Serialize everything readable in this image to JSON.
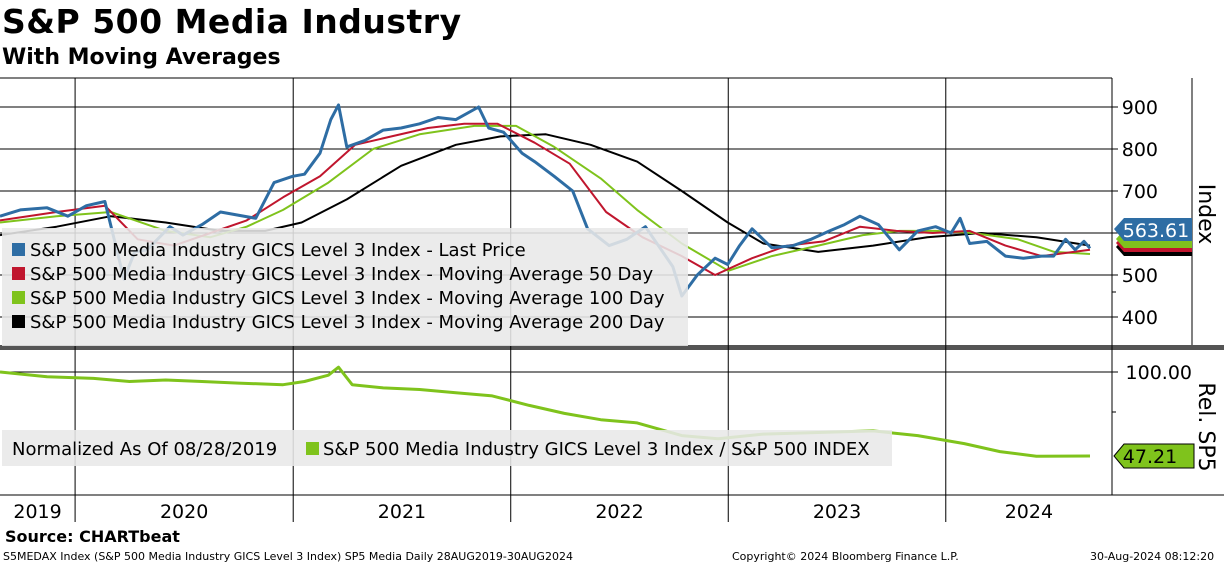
{
  "header": {
    "title": "S&P 500 Media Industry",
    "subtitle": "With Moving Averages"
  },
  "colors": {
    "last_price": "#2e6da4",
    "ma50": "#c0162e",
    "ma100": "#7fc31c",
    "ma200": "#000000",
    "relative": "#7fc31c"
  },
  "chart_data": [
    {
      "type": "line",
      "panel": "upper",
      "y_axis_label": "Index",
      "y_ticks": [
        "900",
        "800",
        "700",
        "600",
        "500",
        "400"
      ],
      "ylim": [
        350,
        950
      ],
      "x_ticks": [
        "2019",
        "2020",
        "2021",
        "2022",
        "2023",
        "2024"
      ],
      "xlim": [
        "2019-08-28",
        "2024-08-30"
      ],
      "last_value_label": "563.61",
      "legend": [
        "S&P 500 Media Industry GICS Level 3 Index - Last Price",
        "S&P 500 Media Industry GICS Level 3 Index - Moving Average 50 Day",
        "S&P 500 Media Industry GICS Level 3 Index - Moving Average 100 Day",
        "S&P 500 Media Industry GICS Level 3 Index - Moving Average 200 Day"
      ],
      "series": [
        {
          "name": "S&P 500 Media Industry GICS Level 3 Index - Last Price",
          "points": [
            [
              "2019-08-28",
              640
            ],
            [
              "2019-10-01",
              655
            ],
            [
              "2019-11-15",
              660
            ],
            [
              "2019-12-20",
              640
            ],
            [
              "2020-01-20",
              665
            ],
            [
              "2020-02-20",
              675
            ],
            [
              "2020-03-23",
              490
            ],
            [
              "2020-04-10",
              555
            ],
            [
              "2020-05-01",
              560
            ],
            [
              "2020-06-08",
              615
            ],
            [
              "2020-06-30",
              595
            ],
            [
              "2020-08-01",
              620
            ],
            [
              "2020-09-01",
              650
            ],
            [
              "2020-10-30",
              635
            ],
            [
              "2020-11-30",
              720
            ],
            [
              "2020-12-31",
              735
            ],
            [
              "2021-01-20",
              740
            ],
            [
              "2021-02-15",
              790
            ],
            [
              "2021-03-05",
              870
            ],
            [
              "2021-03-18",
              905
            ],
            [
              "2021-04-01",
              805
            ],
            [
              "2021-05-01",
              820
            ],
            [
              "2021-06-01",
              845
            ],
            [
              "2021-07-01",
              850
            ],
            [
              "2021-08-01",
              860
            ],
            [
              "2021-09-01",
              875
            ],
            [
              "2021-10-01",
              870
            ],
            [
              "2021-11-08",
              900
            ],
            [
              "2021-11-25",
              850
            ],
            [
              "2021-12-20",
              840
            ],
            [
              "2022-01-20",
              790
            ],
            [
              "2022-02-10",
              770
            ],
            [
              "2022-03-15",
              735
            ],
            [
              "2022-04-15",
              700
            ],
            [
              "2022-05-10",
              610
            ],
            [
              "2022-06-15",
              570
            ],
            [
              "2022-07-15",
              585
            ],
            [
              "2022-08-15",
              615
            ],
            [
              "2022-09-30",
              520
            ],
            [
              "2022-10-15",
              450
            ],
            [
              "2022-11-10",
              500
            ],
            [
              "2022-12-10",
              540
            ],
            [
              "2022-12-31",
              525
            ],
            [
              "2023-01-20",
              570
            ],
            [
              "2023-02-10",
              610
            ],
            [
              "2023-03-15",
              565
            ],
            [
              "2023-04-20",
              570
            ],
            [
              "2023-05-20",
              585
            ],
            [
              "2023-06-20",
              605
            ],
            [
              "2023-07-15",
              620
            ],
            [
              "2023-08-10",
              640
            ],
            [
              "2023-09-10",
              620
            ],
            [
              "2023-10-15",
              560
            ],
            [
              "2023-11-15",
              605
            ],
            [
              "2023-12-15",
              615
            ],
            [
              "2024-01-10",
              600
            ],
            [
              "2024-01-25",
              635
            ],
            [
              "2024-02-10",
              575
            ],
            [
              "2024-03-10",
              580
            ],
            [
              "2024-04-10",
              545
            ],
            [
              "2024-05-10",
              540
            ],
            [
              "2024-06-10",
              545
            ],
            [
              "2024-06-30",
              545
            ],
            [
              "2024-07-20",
              585
            ],
            [
              "2024-08-05",
              560
            ],
            [
              "2024-08-20",
              580
            ],
            [
              "2024-08-30",
              563.61
            ]
          ]
        },
        {
          "name": "S&P 500 Media Industry GICS Level 3 Index - Moving Average 50 Day",
          "points": [
            [
              "2019-08-28",
              630
            ],
            [
              "2019-12-01",
              650
            ],
            [
              "2020-02-20",
              665
            ],
            [
              "2020-04-15",
              585
            ],
            [
              "2020-06-15",
              570
            ],
            [
              "2020-08-15",
              600
            ],
            [
              "2020-10-15",
              630
            ],
            [
              "2020-12-15",
              685
            ],
            [
              "2021-02-15",
              735
            ],
            [
              "2021-04-15",
              810
            ],
            [
              "2021-06-15",
              830
            ],
            [
              "2021-08-15",
              850
            ],
            [
              "2021-10-15",
              860
            ],
            [
              "2021-12-10",
              860
            ],
            [
              "2022-02-10",
              815
            ],
            [
              "2022-04-10",
              765
            ],
            [
              "2022-06-10",
              650
            ],
            [
              "2022-08-10",
              590
            ],
            [
              "2022-10-15",
              545
            ],
            [
              "2022-12-10",
              500
            ],
            [
              "2023-02-10",
              540
            ],
            [
              "2023-04-10",
              570
            ],
            [
              "2023-06-10",
              580
            ],
            [
              "2023-08-10",
              615
            ],
            [
              "2023-10-10",
              605
            ],
            [
              "2023-12-10",
              600
            ],
            [
              "2024-02-10",
              605
            ],
            [
              "2024-04-10",
              570
            ],
            [
              "2024-06-10",
              545
            ],
            [
              "2024-08-30",
              560
            ]
          ]
        },
        {
          "name": "S&P 500 Media Industry GICS Level 3 Index - Moving Average 100 Day",
          "points": [
            [
              "2019-08-28",
              625
            ],
            [
              "2019-12-01",
              640
            ],
            [
              "2020-03-01",
              650
            ],
            [
              "2020-06-01",
              605
            ],
            [
              "2020-08-15",
              590
            ],
            [
              "2020-10-15",
              615
            ],
            [
              "2020-12-15",
              655
            ],
            [
              "2021-03-01",
              720
            ],
            [
              "2021-05-15",
              800
            ],
            [
              "2021-08-01",
              835
            ],
            [
              "2021-11-01",
              855
            ],
            [
              "2022-01-10",
              855
            ],
            [
              "2022-03-15",
              805
            ],
            [
              "2022-06-01",
              730
            ],
            [
              "2022-08-01",
              655
            ],
            [
              "2022-10-15",
              575
            ],
            [
              "2023-01-01",
              510
            ],
            [
              "2023-03-15",
              545
            ],
            [
              "2023-06-01",
              570
            ],
            [
              "2023-08-15",
              595
            ],
            [
              "2023-10-15",
              605
            ],
            [
              "2023-12-15",
              605
            ],
            [
              "2024-02-15",
              600
            ],
            [
              "2024-05-01",
              585
            ],
            [
              "2024-07-01",
              555
            ],
            [
              "2024-08-30",
              550
            ]
          ]
        },
        {
          "name": "S&P 500 Media Industry GICS Level 3 Index - Moving Average 200 Day",
          "points": [
            [
              "2019-08-28",
              595
            ],
            [
              "2019-12-01",
              615
            ],
            [
              "2020-03-01",
              640
            ],
            [
              "2020-06-01",
              625
            ],
            [
              "2020-09-01",
              605
            ],
            [
              "2020-11-15",
              605
            ],
            [
              "2021-01-15",
              625
            ],
            [
              "2021-04-01",
              680
            ],
            [
              "2021-07-01",
              760
            ],
            [
              "2021-10-01",
              810
            ],
            [
              "2021-12-15",
              830
            ],
            [
              "2022-03-01",
              835
            ],
            [
              "2022-05-15",
              810
            ],
            [
              "2022-08-01",
              770
            ],
            [
              "2022-10-15",
              700
            ],
            [
              "2022-12-31",
              625
            ],
            [
              "2023-03-01",
              575
            ],
            [
              "2023-06-01",
              555
            ],
            [
              "2023-09-01",
              570
            ],
            [
              "2023-12-01",
              590
            ],
            [
              "2024-03-01",
              600
            ],
            [
              "2024-06-01",
              590
            ],
            [
              "2024-08-30",
              570
            ]
          ]
        }
      ]
    },
    {
      "type": "line",
      "panel": "lower",
      "y_axis_label": "Rel. SP5",
      "y_ticks": [
        "100.00"
      ],
      "last_value_label": "47.21",
      "legend": [
        "Normalized As Of 08/28/2019",
        "S&P 500 Media Industry GICS Level 3 Index / S&P 500 INDEX"
      ],
      "series": [
        {
          "name": "S&P 500 Media Industry GICS Level 3 Index / S&P 500 INDEX",
          "points": [
            [
              "2019-08-28",
              100
            ],
            [
              "2019-11-15",
              97
            ],
            [
              "2020-02-01",
              96
            ],
            [
              "2020-04-01",
              94
            ],
            [
              "2020-06-01",
              95
            ],
            [
              "2020-08-01",
              94
            ],
            [
              "2020-10-01",
              93
            ],
            [
              "2020-12-15",
              92
            ],
            [
              "2021-01-20",
              94
            ],
            [
              "2021-03-01",
              98
            ],
            [
              "2021-03-18",
              103
            ],
            [
              "2021-04-10",
              92
            ],
            [
              "2021-06-01",
              90
            ],
            [
              "2021-08-01",
              89
            ],
            [
              "2021-10-01",
              87
            ],
            [
              "2021-12-01",
              85
            ],
            [
              "2022-02-01",
              79
            ],
            [
              "2022-04-01",
              74
            ],
            [
              "2022-06-01",
              70
            ],
            [
              "2022-08-01",
              68
            ],
            [
              "2022-10-15",
              60
            ],
            [
              "2022-12-15",
              58
            ],
            [
              "2023-03-01",
              61
            ],
            [
              "2023-06-01",
              62
            ],
            [
              "2023-09-01",
              63
            ],
            [
              "2023-11-15",
              60
            ],
            [
              "2024-02-01",
              55
            ],
            [
              "2024-04-01",
              50
            ],
            [
              "2024-06-01",
              47
            ],
            [
              "2024-08-30",
              47.21
            ]
          ]
        }
      ]
    }
  ],
  "footer": {
    "source": "Source: CHARTbeat",
    "ticker_info": "S5MEDAX Index (S&P 500 Media Industry GICS Level 3 Index) SP5 Media  Daily 28AUG2019-30AUG2024",
    "copyright": "Copyright© 2024 Bloomberg Finance L.P.",
    "timestamp": "30-Aug-2024 08:12:20"
  }
}
